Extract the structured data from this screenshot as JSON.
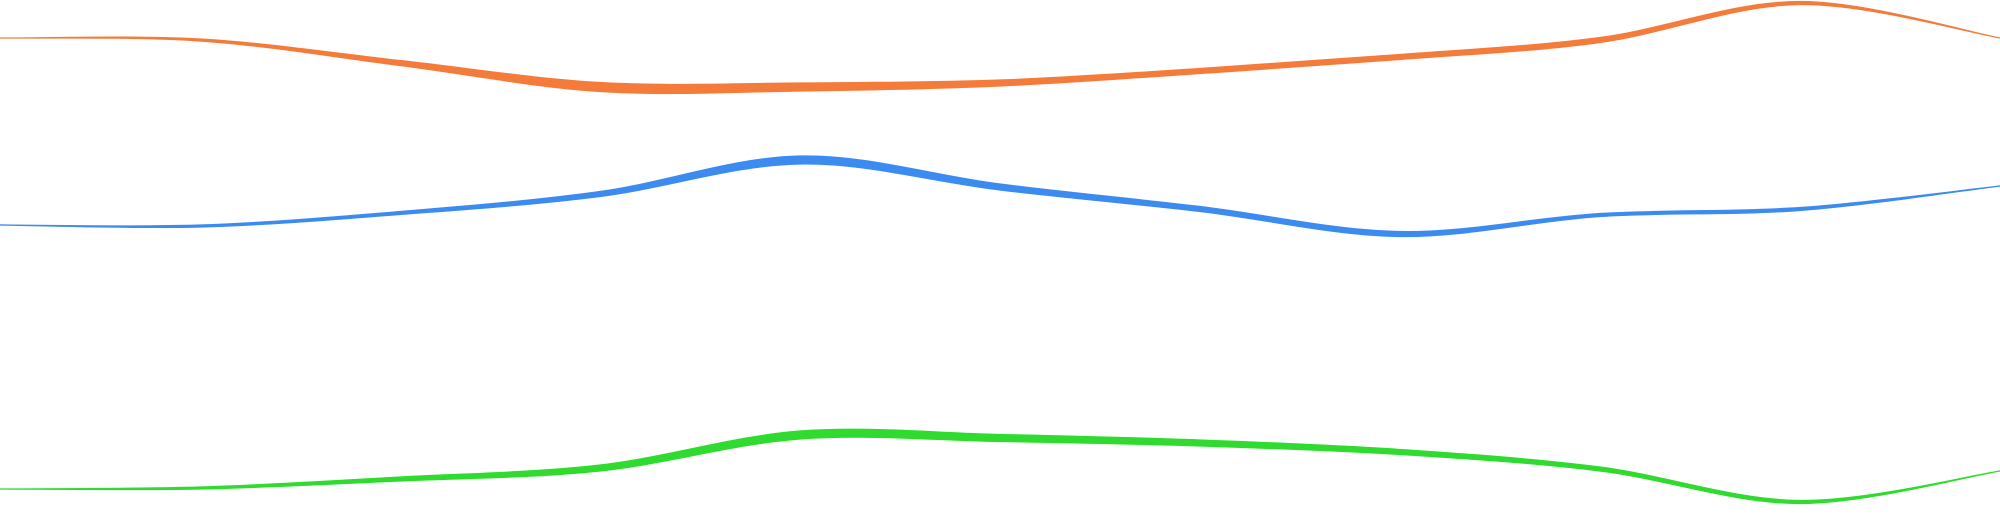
{
  "chart_data": {
    "type": "line",
    "title": "",
    "xlabel": "",
    "ylabel": "",
    "x": [
      0,
      1,
      2,
      3,
      4,
      5,
      6,
      7,
      8,
      9,
      10
    ],
    "xlim": [
      0,
      10
    ],
    "ylim": [
      0,
      524
    ],
    "grid": false,
    "legend": "none",
    "series": [
      {
        "color": "#F47B3A",
        "values": [
          486,
          484,
          461,
          437,
          437,
          441,
          453,
          467,
          484,
          521,
          486
        ],
        "spread": [
          0,
          2,
          5,
          9,
          8,
          6,
          5,
          5,
          5,
          3,
          0
        ]
      },
      {
        "color": "#3B8BF0",
        "values": [
          299,
          298,
          311,
          330,
          364,
          337,
          315,
          290,
          309,
          315,
          338
        ],
        "spread": [
          0,
          2,
          3,
          5,
          8,
          6,
          5,
          5,
          3,
          3,
          0
        ]
      },
      {
        "color": "#2EDB2E",
        "values": [
          35,
          36,
          45,
          56,
          89,
          86,
          81,
          72,
          55,
          22,
          53
        ],
        "spread": [
          0,
          2,
          4,
          6,
          8,
          7,
          6,
          5,
          4,
          3,
          0
        ]
      }
    ]
  }
}
